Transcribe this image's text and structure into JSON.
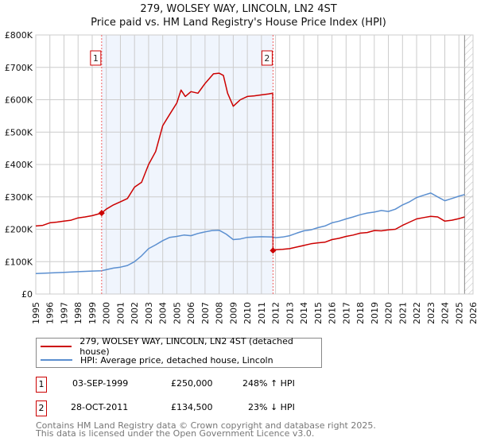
{
  "header": {
    "title_line1": "279, WOLSEY WAY, LINCOLN, LN2 4ST",
    "title_line2": "Price paid vs. HM Land Registry's House Price Index (HPI)"
  },
  "legend": {
    "items": [
      {
        "label": "279, WOLSEY WAY, LINCOLN, LN2 4ST (detached house)",
        "color": "#cc0000"
      },
      {
        "label": "HPI: Average price, detached house, Lincoln",
        "color": "#5b8fd0"
      }
    ]
  },
  "transactions": [
    {
      "num": "1",
      "date": "03-SEP-1999",
      "price": "£250,000",
      "hpi": "248% ↑ HPI"
    },
    {
      "num": "2",
      "date": "28-OCT-2011",
      "price": "£134,500",
      "hpi": "23% ↓ HPI"
    }
  ],
  "footer": {
    "line1": "Contains HM Land Registry data © Crown copyright and database right 2025.",
    "line2": "This data is licensed under the Open Government Licence v3.0."
  },
  "chart_data": {
    "type": "line",
    "title": "279, WOLSEY WAY, LINCOLN, LN2 4ST — Price paid vs. HM Land Registry's House Price Index (HPI)",
    "xlabel": "",
    "ylabel": "",
    "xlim": [
      1995,
      2026
    ],
    "ylim": [
      0,
      800000
    ],
    "x_ticks": [
      "1995",
      "1996",
      "1997",
      "1998",
      "1999",
      "2000",
      "2001",
      "2002",
      "2003",
      "2004",
      "2005",
      "2006",
      "2007",
      "2008",
      "2009",
      "2010",
      "2011",
      "2012",
      "2013",
      "2014",
      "2015",
      "2016",
      "2017",
      "2018",
      "2019",
      "2020",
      "2021",
      "2022",
      "2023",
      "2024",
      "2025",
      "2026"
    ],
    "y_ticks": [
      {
        "value": 0,
        "label": "£0"
      },
      {
        "value": 100000,
        "label": "£100K"
      },
      {
        "value": 200000,
        "label": "£200K"
      },
      {
        "value": 300000,
        "label": "£300K"
      },
      {
        "value": 400000,
        "label": "£400K"
      },
      {
        "value": 500000,
        "label": "£500K"
      },
      {
        "value": 600000,
        "label": "£600K"
      },
      {
        "value": 700000,
        "label": "£700K"
      },
      {
        "value": 800000,
        "label": "£800K"
      }
    ],
    "grid": true,
    "shaded_range": [
      1999.67,
      2011.82
    ],
    "forecast_hatch_from": 2025.4,
    "sales": [
      {
        "label": "1",
        "x": 1999.67,
        "y": 250000
      },
      {
        "label": "2",
        "x": 2011.82,
        "y": 134500
      }
    ],
    "series": [
      {
        "name": "279, WOLSEY WAY, LINCOLN, LN2 4ST (detached house)",
        "color": "#cc0000",
        "x": [
          1995,
          1995.5,
          1996,
          1996.5,
          1997,
          1997.5,
          1998,
          1998.5,
          1999,
          1999.67,
          2000,
          2000.5,
          2001,
          2001.5,
          2002,
          2002.5,
          2003,
          2003.5,
          2004,
          2004.5,
          2005,
          2005.3,
          2005.6,
          2006,
          2006.5,
          2007,
          2007.3,
          2007.6,
          2008,
          2008.3,
          2008.6,
          2009,
          2009.5,
          2010,
          2010.5,
          2011,
          2011.5,
          2011.8,
          2011.82,
          2012,
          2012.5,
          2013,
          2013.5,
          2014,
          2014.5,
          2015,
          2015.5,
          2016,
          2016.5,
          2017,
          2017.5,
          2018,
          2018.5,
          2019,
          2019.5,
          2020,
          2020.5,
          2021,
          2021.5,
          2022,
          2022.5,
          2023,
          2023.5,
          2024,
          2024.5,
          2025,
          2025.4
        ],
        "y": [
          210000,
          212000,
          220000,
          222000,
          225000,
          228000,
          235000,
          238000,
          242000,
          250000,
          262000,
          275000,
          285000,
          295000,
          330000,
          345000,
          400000,
          440000,
          520000,
          555000,
          590000,
          630000,
          610000,
          625000,
          620000,
          650000,
          665000,
          680000,
          682000,
          675000,
          620000,
          580000,
          600000,
          610000,
          612000,
          615000,
          618000,
          620000,
          134500,
          137000,
          138000,
          140000,
          145000,
          150000,
          155000,
          158000,
          160000,
          168000,
          172000,
          178000,
          182000,
          188000,
          190000,
          196000,
          195000,
          198000,
          200000,
          212000,
          222000,
          232000,
          236000,
          240000,
          238000,
          225000,
          228000,
          233000,
          238000
        ]
      },
      {
        "name": "HPI: Average price, detached house, Lincoln",
        "color": "#5b8fd0",
        "x": [
          1995,
          1996,
          1997,
          1998,
          1999,
          1999.67,
          2000,
          2000.5,
          2001,
          2001.5,
          2002,
          2002.5,
          2003,
          2003.5,
          2004,
          2004.5,
          2005,
          2005.5,
          2006,
          2006.5,
          2007,
          2007.5,
          2008,
          2008.5,
          2009,
          2009.5,
          2010,
          2010.5,
          2011,
          2011.82,
          2012,
          2012.5,
          2013,
          2013.5,
          2014,
          2014.5,
          2015,
          2015.5,
          2016,
          2016.5,
          2017,
          2017.5,
          2018,
          2018.5,
          2019,
          2019.5,
          2020,
          2020.5,
          2021,
          2021.5,
          2022,
          2022.5,
          2023,
          2023.5,
          2024,
          2024.5,
          2025,
          2025.4
        ],
        "y": [
          63000,
          65000,
          67000,
          69000,
          71000,
          72000,
          75000,
          80000,
          83000,
          88000,
          100000,
          118000,
          140000,
          152000,
          165000,
          175000,
          178000,
          182000,
          180000,
          187000,
          192000,
          196000,
          197000,
          185000,
          168000,
          170000,
          175000,
          176000,
          177000,
          176000,
          174000,
          176000,
          180000,
          188000,
          195000,
          198000,
          205000,
          210000,
          220000,
          225000,
          232000,
          238000,
          245000,
          250000,
          253000,
          258000,
          255000,
          262000,
          275000,
          285000,
          298000,
          305000,
          312000,
          300000,
          288000,
          295000,
          302000,
          307000
        ]
      }
    ]
  }
}
